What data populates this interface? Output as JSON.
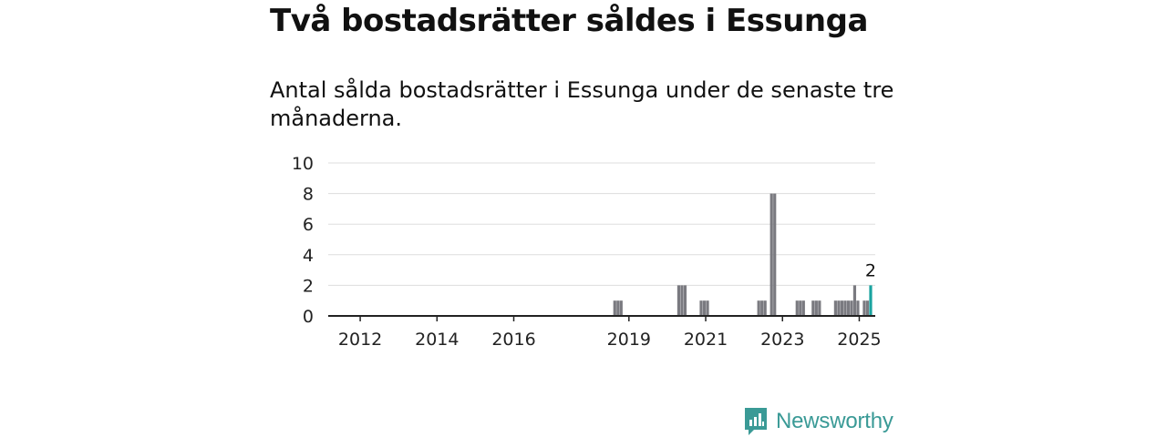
{
  "title": "Två bostadsrätter såldes i Essunga",
  "subtitle": "Antal sålda bostadsrätter i Essunga under de senaste tre månaderna.",
  "brand": {
    "name": "Newsworthy",
    "icon": "newsworthy-logo-icon",
    "color": "#3a9a96"
  },
  "colors": {
    "bar": "#7a7a80",
    "highlight": "#1aa3a0",
    "grid": "#dddddd",
    "axis": "#222222"
  },
  "chart_data": {
    "type": "bar",
    "title": "Två bostadsrätter såldes i Essunga",
    "xlabel": "",
    "ylabel": "",
    "ylim": [
      0,
      10
    ],
    "yticks": [
      "0",
      "2",
      "4",
      "6",
      "8",
      "10"
    ],
    "xticks": [
      "2012",
      "2014",
      "2016",
      "2019",
      "2021",
      "2023",
      "2025"
    ],
    "xlim": [
      "2011-03",
      "2025-06"
    ],
    "grid": true,
    "bars": [
      {
        "date": "2018-08",
        "value": 1
      },
      {
        "date": "2018-09",
        "value": 1
      },
      {
        "date": "2018-10",
        "value": 1
      },
      {
        "date": "2020-04",
        "value": 2
      },
      {
        "date": "2020-05",
        "value": 2
      },
      {
        "date": "2020-06",
        "value": 2
      },
      {
        "date": "2020-11",
        "value": 1
      },
      {
        "date": "2020-12",
        "value": 1
      },
      {
        "date": "2021-01",
        "value": 1
      },
      {
        "date": "2022-05",
        "value": 1
      },
      {
        "date": "2022-06",
        "value": 1
      },
      {
        "date": "2022-07",
        "value": 1
      },
      {
        "date": "2022-09",
        "value": 8
      },
      {
        "date": "2022-10",
        "value": 8
      },
      {
        "date": "2023-05",
        "value": 1
      },
      {
        "date": "2023-06",
        "value": 1
      },
      {
        "date": "2023-07",
        "value": 1
      },
      {
        "date": "2023-10",
        "value": 1
      },
      {
        "date": "2023-11",
        "value": 1
      },
      {
        "date": "2023-12",
        "value": 1
      },
      {
        "date": "2024-05",
        "value": 1
      },
      {
        "date": "2024-06",
        "value": 1
      },
      {
        "date": "2024-07",
        "value": 1
      },
      {
        "date": "2024-08",
        "value": 1
      },
      {
        "date": "2024-09",
        "value": 1
      },
      {
        "date": "2024-10",
        "value": 1
      },
      {
        "date": "2024-11",
        "value": 2
      },
      {
        "date": "2024-12",
        "value": 1
      },
      {
        "date": "2025-02",
        "value": 1
      },
      {
        "date": "2025-03",
        "value": 1
      },
      {
        "date": "2025-04",
        "value": 2,
        "highlight": true
      }
    ],
    "annotation": {
      "date": "2025-04",
      "text": "2"
    }
  }
}
